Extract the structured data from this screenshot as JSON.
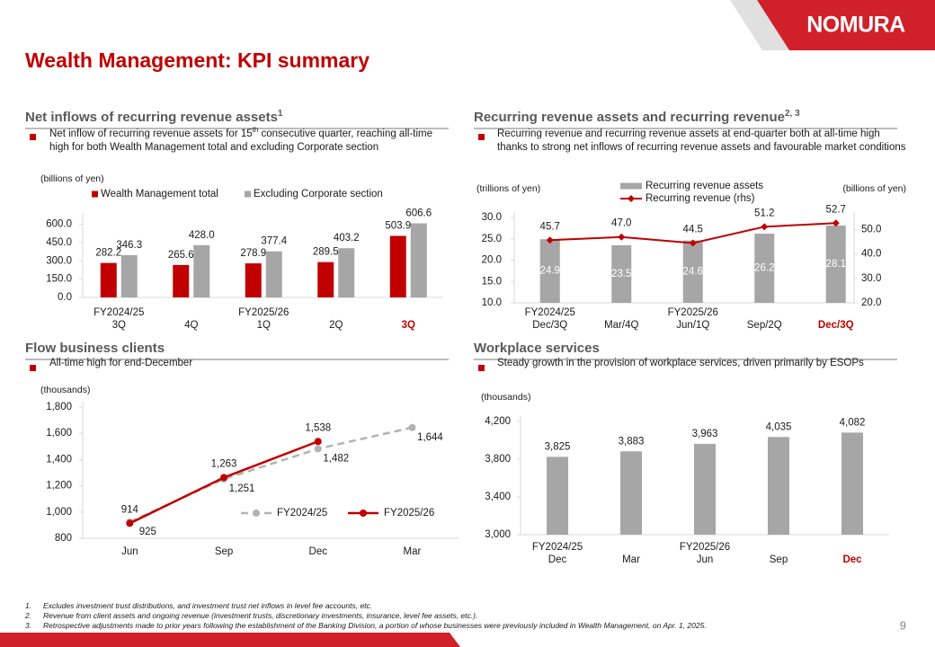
{
  "header": {
    "title": "Wealth Management: KPI summary",
    "logo": "NOMURA"
  },
  "page_number": 9,
  "footnotes": [
    {
      "marker": "1.",
      "text": "Excludes investment trust distributions, and investment trust net inflows in level fee accounts, etc."
    },
    {
      "marker": "2.",
      "text": "Revenue from client assets and ongoing revenue (investment trusts, discretionary investments, insurance, level fee assets, etc.)."
    },
    {
      "marker": "3.",
      "text": "Retrospective adjustments made to prior years following the establishment of the Banking Division, a portion of whose businesses were previously included in Wealth Management, on Apr. 1, 2025."
    }
  ],
  "chart_data": [
    {
      "type": "bar",
      "title": "Net inflows of recurring revenue assets",
      "title_note": "1",
      "bullet": [
        "Net inflow of recurring revenue assets for 15",
        "th",
        " consecutive quarter, reaching all-time high for both Wealth Management total and excluding Corporate section"
      ],
      "unit_label": "(billions of yen)",
      "period_labels": [
        "FY2024/25",
        null,
        "FY2025/26",
        null,
        null
      ],
      "categories": [
        "3Q",
        "4Q",
        "1Q",
        "2Q",
        "3Q"
      ],
      "highlight_category": 4,
      "highlight_color": "#c00000",
      "series": [
        {
          "name": "Wealth Management total",
          "color": "#c00000",
          "values": [
            282.2,
            265.6,
            278.9,
            289.5,
            503.9
          ]
        },
        {
          "name": "Excluding Corporate section",
          "color": "#a6a6a6",
          "values": [
            346.3,
            428.0,
            377.4,
            403.2,
            606.6
          ],
          "value_labels": [
            "346.3",
            "428.0",
            "377.4",
            "403.2",
            "606.6"
          ]
        }
      ],
      "ylim": [
        0,
        640
      ],
      "yticks": [
        {
          "value": 0,
          "label": "0.0"
        },
        {
          "value": 150,
          "label": "150.0"
        },
        {
          "value": 300,
          "label": "300.0"
        },
        {
          "value": 450,
          "label": "450.0"
        },
        {
          "value": 600,
          "label": "600.0"
        }
      ]
    },
    {
      "type": "bar_line",
      "title": "Recurring revenue assets and recurring revenue",
      "title_note": "2, 3",
      "bullet": "Recurring revenue and recurring revenue assets at end-quarter both at all-time high thanks to strong net inflows of recurring revenue assets and favourable market conditions",
      "unit_label": "(trillions of yen)",
      "y2_unit_label": "(billions of yen)",
      "period_labels": [
        "FY2024/25",
        null,
        "FY2025/26",
        null,
        null
      ],
      "categories": [
        "Dec/3Q",
        "Mar/4Q",
        "Jun/1Q",
        "Sep/2Q",
        "Dec/3Q"
      ],
      "highlight_category": 4,
      "highlight_color": "#c00000",
      "series": [
        {
          "name": "Recurring revenue assets",
          "color": "#a6a6a6",
          "values": [
            24.9,
            23.5,
            24.6,
            26.2,
            28.1
          ]
        },
        {
          "name": "Recurring revenue (rhs)",
          "color": "#c00000",
          "axis": "y2",
          "values": [
            45.7,
            47.0,
            44.5,
            51.2,
            52.7
          ],
          "value_labels": [
            "45.7",
            "47.0",
            "44.5",
            "51.2",
            "52.7"
          ]
        }
      ],
      "ylim": [
        10,
        30
      ],
      "yticks": [
        {
          "value": 10,
          "label": "10.0"
        },
        {
          "value": 15,
          "label": "15.0"
        },
        {
          "value": 20,
          "label": "20.0"
        },
        {
          "value": 25,
          "label": "25.0"
        },
        {
          "value": 30,
          "label": "30.0"
        }
      ],
      "y2lim": [
        20,
        55
      ],
      "y2ticks": [
        {
          "value": 20,
          "label": "20.0"
        },
        {
          "value": 30,
          "label": "30.0"
        },
        {
          "value": 40,
          "label": "40.0"
        },
        {
          "value": 50,
          "label": "50.0"
        }
      ]
    },
    {
      "type": "line",
      "title": "Flow business clients",
      "bullet": "All-time high for end-December",
      "unit_label": "(thousands)",
      "categories": [
        "Jun",
        "Sep",
        "Dec",
        "Mar"
      ],
      "series": [
        {
          "name": "FY2024/25",
          "color": "#b3b3b3",
          "dashed": true,
          "label_position": "below-right",
          "values": [
            925,
            1251,
            1482,
            1644
          ],
          "value_labels": [
            "925",
            "1,251",
            "1,482",
            "1,644"
          ]
        },
        {
          "name": "FY2025/26",
          "color": "#c00000",
          "dashed": false,
          "label_position": "above",
          "values": [
            914,
            1263,
            1538,
            null
          ],
          "value_labels": [
            "914",
            "1,263",
            "1,538",
            null
          ]
        }
      ],
      "ylim": [
        800,
        1800
      ],
      "yticks": [
        800,
        {
          "value": 1000,
          "label": "1,000"
        },
        {
          "value": 1200,
          "label": "1,200"
        },
        {
          "value": 1400,
          "label": "1,400"
        },
        {
          "value": 1600,
          "label": "1,600"
        },
        {
          "value": 1800,
          "label": "1,800"
        }
      ]
    },
    {
      "type": "bar",
      "title": "Workplace services",
      "bullet": "Steady growth in the provision of workplace services, driven primarily by ESOPs",
      "unit_label": "(thousands)",
      "period_labels": [
        "FY2024/25",
        null,
        "FY2025/26",
        null,
        null
      ],
      "categories": [
        "Dec",
        "Mar",
        "Jun",
        "Sep",
        "Dec"
      ],
      "highlight_category": 4,
      "highlight_color": "#c00000",
      "color": "#a6a6a6",
      "values": [
        3825,
        3883,
        3963,
        4035,
        4082
      ],
      "value_labels": [
        "3,825",
        "3,883",
        "3,963",
        "4,035",
        "4,082"
      ],
      "ylim": [
        3000,
        4200
      ],
      "yticks": [
        {
          "value": 3000,
          "label": "3,000"
        },
        {
          "value": 3400,
          "label": "3,400"
        },
        {
          "value": 3800,
          "label": "3,800"
        },
        {
          "value": 4200,
          "label": "4,200"
        }
      ]
    }
  ]
}
